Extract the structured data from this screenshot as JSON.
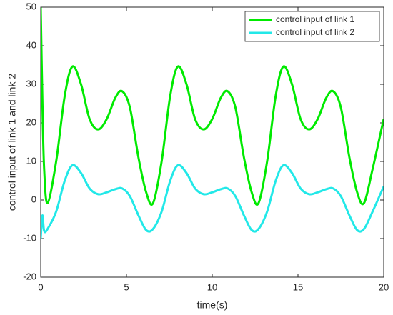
{
  "chart_data": {
    "type": "line",
    "xlabel": "time(s)",
    "ylabel": "control input of link 1 and link 2",
    "x": [
      0,
      0.1,
      0.2,
      0.4,
      0.9,
      1.4,
      1.85,
      2.35,
      2.85,
      3.35,
      3.85,
      4.35,
      4.75,
      5.2,
      5.7,
      6.15,
      6.55,
      7.05,
      7.55,
      8.0,
      8.5,
      9.0,
      9.5,
      10.0,
      10.5,
      10.9,
      11.35,
      11.85,
      12.3,
      12.7,
      13.2,
      13.7,
      14.15,
      14.65,
      15.15,
      15.65,
      16.15,
      16.65,
      17.05,
      17.5,
      18.0,
      18.45,
      18.85,
      19.35,
      19.85,
      20
    ],
    "series": [
      {
        "name": "control input of link 1",
        "color": "#00ea00",
        "values": [
          50,
          25,
          8,
          -0.8,
          10,
          27,
          34.6,
          30,
          21,
          18.3,
          21,
          26.5,
          28.2,
          24,
          11,
          2,
          -0.8,
          10,
          27,
          34.6,
          30,
          21,
          18.3,
          21,
          26.5,
          28.2,
          24,
          11,
          2,
          -0.8,
          10,
          27,
          34.6,
          30,
          21,
          18.3,
          21,
          26.5,
          28.2,
          24,
          11,
          2,
          -0.8,
          8,
          18,
          21
        ]
      },
      {
        "name": "control input of link 2",
        "color": "#22e8e8",
        "values": [
          -10,
          -4,
          -8,
          -7.5,
          -3,
          5,
          9,
          7,
          3,
          1.5,
          2,
          2.8,
          3,
          1,
          -4,
          -7.8,
          -7.5,
          -3,
          5,
          9,
          7,
          3,
          1.5,
          2,
          2.8,
          3,
          1,
          -4,
          -7.8,
          -7.5,
          -3,
          5,
          9,
          7,
          3,
          1.5,
          2,
          2.8,
          3,
          1,
          -4,
          -7.8,
          -7.5,
          -3,
          2,
          3.5
        ]
      }
    ],
    "xlim": [
      0,
      20
    ],
    "xticks": [
      0,
      5,
      10,
      15,
      20
    ],
    "ylim": [
      -20,
      50
    ],
    "yticks": [
      -20,
      -10,
      0,
      10,
      20,
      30,
      40,
      50
    ],
    "grid": false,
    "legend": "upper right"
  }
}
